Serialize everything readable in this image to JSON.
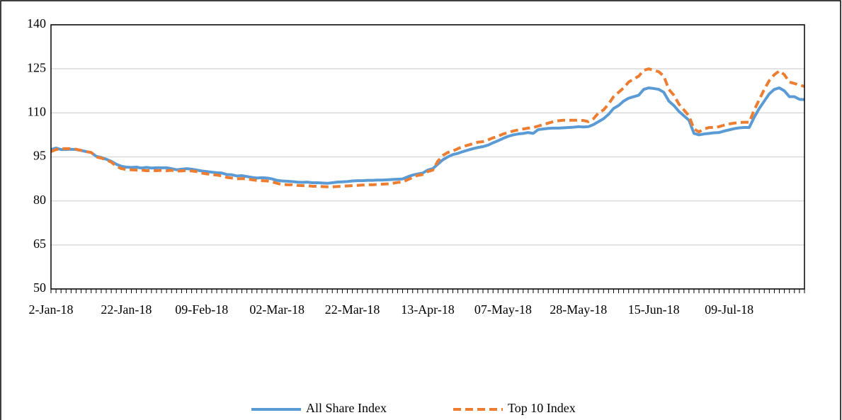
{
  "chart_data": {
    "type": "line",
    "categories": [
      "2-Jan-18",
      null,
      null,
      null,
      null,
      null,
      null,
      null,
      null,
      null,
      null,
      null,
      null,
      null,
      null,
      "22-Jan-18",
      null,
      null,
      null,
      null,
      null,
      null,
      null,
      null,
      null,
      null,
      null,
      null,
      null,
      null,
      "09-Feb-18",
      null,
      null,
      null,
      null,
      null,
      null,
      null,
      null,
      null,
      null,
      null,
      null,
      null,
      null,
      "02-Mar-18",
      null,
      null,
      null,
      null,
      null,
      null,
      null,
      null,
      null,
      null,
      null,
      null,
      null,
      null,
      "22-Mar-18",
      null,
      null,
      null,
      null,
      null,
      null,
      null,
      null,
      null,
      null,
      null,
      null,
      null,
      null,
      "13-Apr-18",
      null,
      null,
      null,
      null,
      null,
      null,
      null,
      null,
      null,
      null,
      null,
      null,
      null,
      null,
      "07-May-18",
      null,
      null,
      null,
      null,
      null,
      null,
      null,
      null,
      null,
      null,
      null,
      null,
      null,
      null,
      "28-May-18",
      null,
      null,
      null,
      null,
      null,
      null,
      null,
      null,
      null,
      null,
      null,
      null,
      null,
      null,
      "15-Jun-18",
      null,
      null,
      null,
      null,
      null,
      null,
      null,
      null,
      null,
      null,
      null,
      null,
      null,
      null,
      "09-Jul-18",
      null,
      null,
      null,
      null,
      null,
      null,
      null,
      null,
      null,
      null,
      null,
      null,
      null,
      null,
      null
    ],
    "series": [
      {
        "name": "All Share Index",
        "color": "#5b9bd5",
        "dash": false,
        "values": [
          97.5,
          98.0,
          97.5,
          97.5,
          97.6,
          97.5,
          97.2,
          96.8,
          96.5,
          95.2,
          94.8,
          94.2,
          93.5,
          92.5,
          91.8,
          91.5,
          91.4,
          91.5,
          91.2,
          91.4,
          91.2,
          91.3,
          91.3,
          91.3,
          91.0,
          90.6,
          90.8,
          91.0,
          90.8,
          90.5,
          90.2,
          90.0,
          89.8,
          89.6,
          89.5,
          89.0,
          88.9,
          88.5,
          88.6,
          88.3,
          88.0,
          87.8,
          87.9,
          87.8,
          87.5,
          87.0,
          86.8,
          86.7,
          86.6,
          86.4,
          86.3,
          86.4,
          86.2,
          86.2,
          86.1,
          86.0,
          86.2,
          86.4,
          86.5,
          86.6,
          86.8,
          86.9,
          86.9,
          87.0,
          87.0,
          87.1,
          87.1,
          87.2,
          87.3,
          87.4,
          87.5,
          88.2,
          88.8,
          89.2,
          89.5,
          90.5,
          91.0,
          92.5,
          94.0,
          95.0,
          95.8,
          96.2,
          96.8,
          97.3,
          97.8,
          98.2,
          98.5,
          99.0,
          99.8,
          100.5,
          101.3,
          102.0,
          102.5,
          102.8,
          103.0,
          103.3,
          103.0,
          104.3,
          104.5,
          104.7,
          104.8,
          104.8,
          104.9,
          105.0,
          105.1,
          105.3,
          105.2,
          105.3,
          106.0,
          107.0,
          108.0,
          109.5,
          111.5,
          112.5,
          114.0,
          115.0,
          115.5,
          116.0,
          118.0,
          118.5,
          118.3,
          118.0,
          117.0,
          114.0,
          112.5,
          110.5,
          109.0,
          107.5,
          103.0,
          102.5,
          102.8,
          103.0,
          103.2,
          103.3,
          103.8,
          104.2,
          104.6,
          104.9,
          105.0,
          105.0,
          108.5,
          111.5,
          114.0,
          116.5,
          118.0,
          118.5,
          117.5,
          115.5,
          115.5,
          114.6,
          114.5
        ]
      },
      {
        "name": "Top 10 Index",
        "color": "#ed7d31",
        "dash": true,
        "values": [
          96.8,
          97.5,
          97.8,
          97.8,
          97.8,
          97.6,
          97.2,
          96.8,
          96.5,
          95.0,
          94.6,
          94.0,
          93.2,
          91.8,
          91.0,
          90.7,
          90.6,
          90.5,
          90.5,
          90.3,
          90.4,
          90.3,
          90.4,
          90.3,
          90.4,
          90.2,
          90.2,
          90.4,
          90.2,
          90.0,
          89.5,
          89.2,
          89.0,
          88.8,
          88.5,
          88.0,
          87.8,
          87.5,
          87.6,
          87.5,
          87.2,
          87.0,
          86.9,
          86.8,
          86.5,
          86.0,
          85.6,
          85.5,
          85.5,
          85.3,
          85.2,
          85.2,
          85.0,
          85.0,
          84.9,
          84.8,
          84.8,
          84.9,
          85.0,
          85.1,
          85.2,
          85.3,
          85.4,
          85.5,
          85.5,
          85.6,
          85.7,
          85.8,
          86.0,
          86.3,
          86.5,
          87.2,
          88.0,
          88.7,
          89.0,
          90.0,
          90.5,
          93.5,
          95.5,
          96.5,
          97.0,
          97.8,
          98.5,
          99.0,
          99.5,
          100.0,
          100.2,
          100.8,
          101.5,
          102.0,
          102.8,
          103.3,
          103.8,
          104.2,
          104.5,
          104.8,
          105.0,
          105.5,
          106.0,
          106.5,
          107.0,
          107.3,
          107.5,
          107.5,
          107.5,
          107.5,
          107.4,
          107.0,
          108.0,
          110.0,
          111.0,
          113.0,
          115.5,
          117.0,
          118.5,
          120.5,
          121.5,
          122.5,
          124.5,
          125.0,
          124.5,
          124.0,
          122.5,
          118.0,
          116.0,
          113.0,
          111.0,
          109.0,
          104.5,
          103.5,
          104.5,
          105.0,
          105.0,
          105.3,
          105.8,
          106.2,
          106.5,
          106.7,
          106.8,
          106.8,
          111.0,
          114.5,
          118.0,
          121.0,
          123.0,
          124.3,
          123.0,
          120.5,
          120.0,
          119.5,
          119.0
        ]
      }
    ],
    "ylim": [
      50,
      140
    ],
    "yticks": [
      50,
      65,
      80,
      95,
      110,
      125,
      140
    ],
    "grid": true,
    "legend": "bottom"
  }
}
